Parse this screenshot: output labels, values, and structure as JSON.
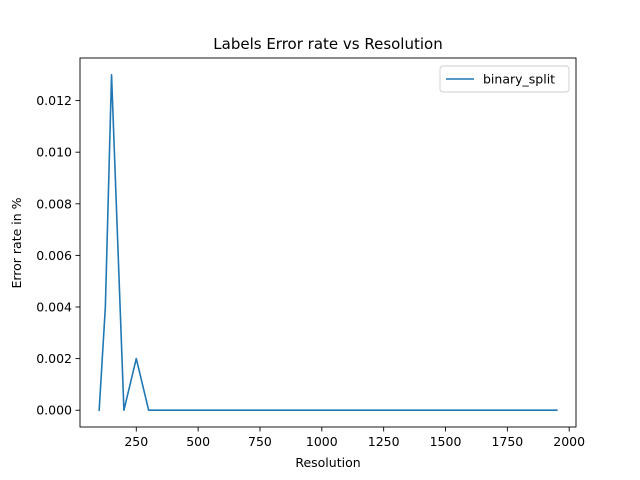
{
  "chart_data": {
    "type": "line",
    "title": "Labels Error rate vs Resolution",
    "xlabel": "Resolution",
    "ylabel": "Error rate in %",
    "xlim": [
      22.5,
      2027.5
    ],
    "ylim": [
      -0.00065,
      0.01365
    ],
    "xticks": [
      250,
      500,
      750,
      1000,
      1250,
      1500,
      1750,
      2000
    ],
    "xtick_labels": [
      "250",
      "500",
      "750",
      "1000",
      "1250",
      "1500",
      "1750",
      "2000"
    ],
    "yticks": [
      0.0,
      0.002,
      0.004,
      0.006,
      0.008,
      0.01,
      0.012
    ],
    "ytick_labels": [
      "0.000",
      "0.002",
      "0.004",
      "0.006",
      "0.008",
      "0.010",
      "0.012"
    ],
    "grid": false,
    "legend_position": "top-right",
    "series": [
      {
        "name": "binary_split",
        "color": "#1f77b4",
        "x": [
          100,
          125,
          150,
          200,
          250,
          300,
          350,
          400,
          450,
          500,
          550,
          600,
          650,
          700,
          750,
          800,
          850,
          900,
          950,
          1000,
          1050,
          1100,
          1150,
          1200,
          1250,
          1300,
          1350,
          1400,
          1450,
          1500,
          1550,
          1600,
          1650,
          1700,
          1750,
          1800,
          1850,
          1900,
          1950
        ],
        "y": [
          0.0,
          0.004,
          0.013,
          0.0,
          0.002,
          0.0,
          0.0,
          0.0,
          0.0,
          0.0,
          0.0,
          0.0,
          0.0,
          0.0,
          0.0,
          0.0,
          0.0,
          0.0,
          0.0,
          0.0,
          0.0,
          0.0,
          0.0,
          0.0,
          0.0,
          0.0,
          0.0,
          0.0,
          0.0,
          0.0,
          0.0,
          0.0,
          0.0,
          0.0,
          0.0,
          0.0,
          0.0,
          0.0,
          0.0
        ]
      }
    ]
  }
}
